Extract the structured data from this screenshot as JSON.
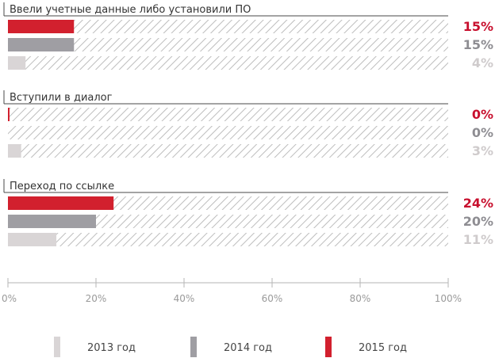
{
  "chart_data": {
    "type": "bar",
    "orientation": "horizontal",
    "title": "",
    "xlabel": "",
    "ylabel": "",
    "xlim": [
      0,
      100
    ],
    "x_ticks": [
      "0%",
      "20%",
      "40%",
      "60%",
      "80%",
      "100%"
    ],
    "groups": [
      {
        "label": "Ввели учетные данные либо установили ПО",
        "bars": [
          {
            "series": "2015 год",
            "value": 15,
            "text": "15%"
          },
          {
            "series": "2014 год",
            "value": 15,
            "text": "15%"
          },
          {
            "series": "2013 год",
            "value": 4,
            "text": "4%"
          }
        ]
      },
      {
        "label": "Вступили в диалог",
        "bars": [
          {
            "series": "2015 год",
            "value": 0,
            "text": "0%"
          },
          {
            "series": "2014 год",
            "value": 0,
            "text": "0%"
          },
          {
            "series": "2013 год",
            "value": 3,
            "text": "3%"
          }
        ]
      },
      {
        "label": "Переход по ссылке",
        "bars": [
          {
            "series": "2015 год",
            "value": 24,
            "text": "24%"
          },
          {
            "series": "2014 год",
            "value": 20,
            "text": "20%"
          },
          {
            "series": "2013 год",
            "value": 11,
            "text": "11%"
          }
        ]
      }
    ],
    "legend": {
      "placement": "bottom",
      "items": [
        {
          "label": "2013 год",
          "color": "#d9d5d6"
        },
        {
          "label": "2014 год",
          "color": "#9f9ea3"
        },
        {
          "label": "2015 год",
          "color": "#d2202e"
        }
      ]
    },
    "series_colors": {
      "2015 год": {
        "bar": "#d2202e",
        "text": "#c8102e"
      },
      "2014 год": {
        "bar": "#9f9ea3",
        "text": "#8e8d92"
      },
      "2013 год": {
        "bar": "#d9d5d6",
        "text": "#cfcbcc"
      }
    },
    "grid": false
  }
}
